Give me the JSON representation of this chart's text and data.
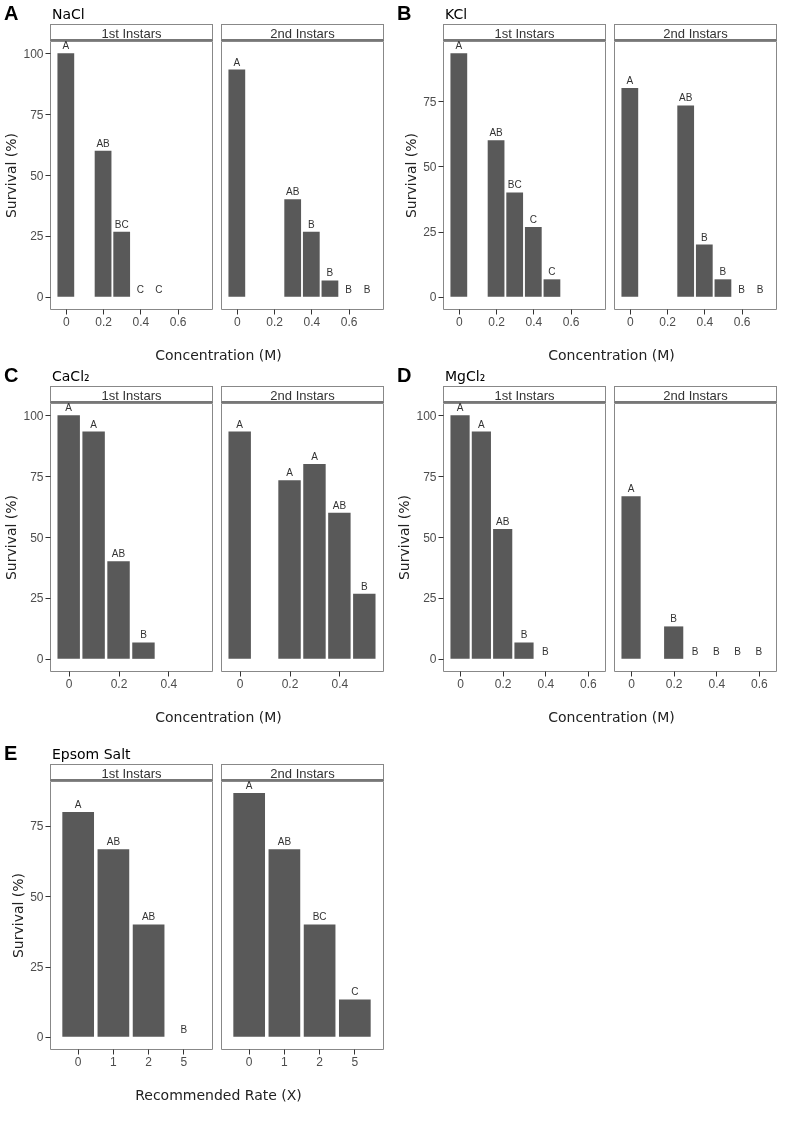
{
  "chart_data": [
    {
      "type": "bar",
      "title": "1st Instars",
      "annotations": [
        "A",
        "NaCl"
      ],
      "ylabel": "Survival (%)",
      "xlabel": "Concentration (M)",
      "color": "#595959",
      "x": [
        0,
        0.2,
        0.3,
        0.4,
        0.5
      ],
      "values": [
        100,
        60,
        26.7,
        0,
        0
      ],
      "value_labels": [
        "A",
        "AB",
        "BC",
        "C",
        "C"
      ],
      "xlim": [
        -0.085,
        0.785
      ],
      "xticks": [
        0,
        0.2,
        0.4,
        0.6
      ],
      "ylim": [
        -5,
        105
      ],
      "yticks": [
        0,
        25,
        50,
        75,
        100
      ]
    },
    {
      "type": "bar",
      "title": "2nd Instars",
      "color": "#595959",
      "x": [
        0,
        0.3,
        0.4,
        0.5,
        0.6,
        0.7
      ],
      "values": [
        93.3,
        40,
        26.7,
        6.7,
        0,
        0
      ],
      "value_labels": [
        "A",
        "AB",
        "B",
        "B",
        "B",
        "B"
      ],
      "xlim": [
        -0.085,
        0.785
      ],
      "xticks": [
        0,
        0.2,
        0.4,
        0.6
      ],
      "ylim": [
        -5,
        105
      ],
      "yticks": [
        0,
        25,
        50,
        75,
        100
      ],
      "tick_labels": "x"
    },
    {
      "type": "bar",
      "title": "1st Instars",
      "annotations": [
        "B",
        "KCl"
      ],
      "ylabel": "Survival (%)",
      "xlabel": "Concentration (M)",
      "color": "#595959",
      "x": [
        0,
        0.2,
        0.3,
        0.4,
        0.5
      ],
      "values": [
        93.3,
        60,
        40,
        26.7,
        6.7
      ],
      "value_labels": [
        "A",
        "AB",
        "BC",
        "C",
        "C"
      ],
      "xlim": [
        -0.085,
        0.785
      ],
      "xticks": [
        0,
        0.2,
        0.4,
        0.6
      ],
      "ylim": [
        -4.67,
        98
      ],
      "yticks": [
        0,
        25,
        50,
        75
      ]
    },
    {
      "type": "bar",
      "title": "2nd Instars",
      "color": "#595959",
      "x": [
        0,
        0.3,
        0.4,
        0.5,
        0.6,
        0.7
      ],
      "values": [
        80,
        73.3,
        20,
        6.7,
        0,
        0
      ],
      "value_labels": [
        "A",
        "AB",
        "B",
        "B",
        "B",
        "B"
      ],
      "xlim": [
        -0.085,
        0.785
      ],
      "xticks": [
        0,
        0.2,
        0.4,
        0.6
      ],
      "ylim": [
        -4.67,
        98
      ],
      "yticks": [
        0,
        25,
        50,
        75
      ],
      "tick_labels": "x"
    },
    {
      "type": "bar",
      "title": "1st Instars",
      "annotations": [
        "C",
        "CaCl₂"
      ],
      "ylabel": "Survival (%)",
      "xlabel": "Concentration (M)",
      "color": "#595959",
      "x": [
        0,
        0.1,
        0.2,
        0.3
      ],
      "values": [
        100,
        93.3,
        40,
        6.7
      ],
      "value_labels": [
        "A",
        "A",
        "AB",
        "B"
      ],
      "xlim": [
        -0.075,
        0.575
      ],
      "xticks": [
        0,
        0.2,
        0.4
      ],
      "ylim": [
        -5,
        105
      ],
      "yticks": [
        0,
        25,
        50,
        75,
        100
      ]
    },
    {
      "type": "bar",
      "title": "2nd Instars",
      "color": "#595959",
      "x": [
        0,
        0.2,
        0.3,
        0.4,
        0.5
      ],
      "values": [
        93.3,
        73.3,
        80,
        60,
        26.7
      ],
      "value_labels": [
        "A",
        "A",
        "A",
        "AB",
        "B"
      ],
      "xlim": [
        -0.075,
        0.575
      ],
      "xticks": [
        0,
        0.2,
        0.4
      ],
      "ylim": [
        -5,
        105
      ],
      "yticks": [
        0,
        25,
        50,
        75,
        100
      ],
      "tick_labels": "x"
    },
    {
      "type": "bar",
      "title": "1st Instars",
      "annotations": [
        "D",
        "MgCl₂"
      ],
      "ylabel": "Survival (%)",
      "xlabel": "Concentration (M)",
      "color": "#595959",
      "x": [
        0,
        0.1,
        0.2,
        0.3,
        0.4
      ],
      "values": [
        100,
        93.3,
        53.3,
        6.7,
        0
      ],
      "value_labels": [
        "A",
        "A",
        "AB",
        "B",
        "B"
      ],
      "xlim": [
        -0.08,
        0.68
      ],
      "xticks": [
        0,
        0.2,
        0.4,
        0.6
      ],
      "ylim": [
        -5,
        105
      ],
      "yticks": [
        0,
        25,
        50,
        75,
        100
      ]
    },
    {
      "type": "bar",
      "title": "2nd Instars",
      "color": "#595959",
      "x": [
        0,
        0.2,
        0.3,
        0.4,
        0.5,
        0.6
      ],
      "values": [
        66.7,
        13.3,
        0,
        0,
        0,
        0
      ],
      "value_labels": [
        "A",
        "B",
        "B",
        "B",
        "B",
        "B"
      ],
      "xlim": [
        -0.08,
        0.68
      ],
      "xticks": [
        0,
        0.2,
        0.4,
        0.6
      ],
      "ylim": [
        -5,
        105
      ],
      "yticks": [
        0,
        25,
        50,
        75,
        100
      ],
      "tick_labels": "x"
    },
    {
      "type": "bar",
      "title": "1st Instars",
      "annotations": [
        "E",
        "Epsom Salt"
      ],
      "ylabel": "Survival (%)",
      "xlabel": "Recommended Rate (X)",
      "color": "#595959",
      "categories": [
        "0",
        "1",
        "2",
        "5"
      ],
      "values": [
        80,
        66.7,
        40,
        0
      ],
      "value_labels": [
        "A",
        "AB",
        "AB",
        "B"
      ],
      "ylim": [
        -4.33,
        91
      ],
      "yticks": [
        0,
        25,
        50,
        75
      ]
    },
    {
      "type": "bar",
      "title": "2nd Instars",
      "color": "#595959",
      "categories": [
        "0",
        "1",
        "2",
        "5"
      ],
      "values": [
        86.7,
        66.7,
        40,
        13.3
      ],
      "value_labels": [
        "A",
        "AB",
        "BC",
        "C"
      ],
      "ylim": [
        -4.33,
        91
      ],
      "yticks": [
        0,
        25,
        50,
        75
      ],
      "tick_labels": "x"
    }
  ]
}
